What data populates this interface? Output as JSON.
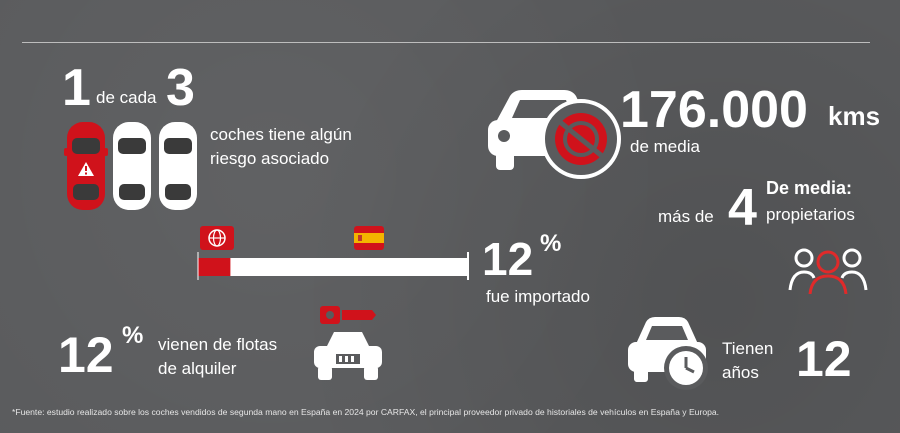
{
  "stat_one_in_three": {
    "num_a": "1",
    "connector": "de cada",
    "num_b": "3",
    "description_line1": "coches tiene algún",
    "description_line2": "riesgo asociado"
  },
  "stat_mileage": {
    "value": "176.000",
    "unit": "kms",
    "caption": "de media"
  },
  "stat_owners": {
    "prefix": "más de",
    "number": "4",
    "label_line1": "De media:",
    "label_line2": "propietarios"
  },
  "stat_imported": {
    "value": "12",
    "percent_sign": "%",
    "caption": "fue importado",
    "bar_fill_fraction": 0.12
  },
  "stat_rental": {
    "value": "12",
    "percent_sign": "%",
    "caption_line1": "vienen de flotas",
    "caption_line2": "de alquiler"
  },
  "stat_age": {
    "label_line1": "Tienen",
    "label_line2": "años",
    "value": "12"
  },
  "footnote": "*Fuente: estudio realizado sobre los coches vendidos de segunda mano en España en 2024 por CARFAX, el principal proveedor privado de historiales de vehículos en España y Europa.",
  "colors": {
    "accent_red": "#d0121b",
    "white": "#ffffff",
    "background": "#5a5b5d"
  },
  "icons": [
    "car-top-view-icon",
    "warning-icon",
    "car-front-icon",
    "no-speed-icon",
    "users-group-icon",
    "globe-flag-icon",
    "spain-flag-icon",
    "rental-car-key-icon",
    "car-clock-icon"
  ]
}
